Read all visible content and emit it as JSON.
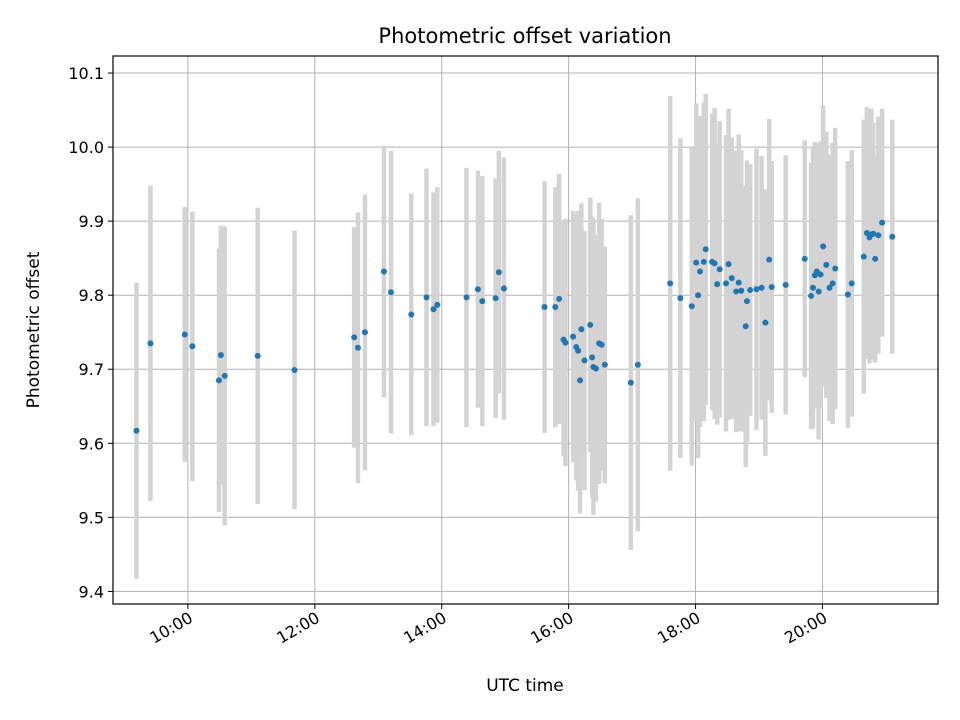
{
  "chart_data": {
    "type": "scatter",
    "title": "Photometric offset variation",
    "xlabel": "UTC time",
    "ylabel": "Photometric offset",
    "xlim": [
      8.82,
      21.82
    ],
    "ylim": [
      9.383,
      10.123
    ],
    "xticks": [
      {
        "value": 10,
        "label": "10:00"
      },
      {
        "value": 12,
        "label": "12:00"
      },
      {
        "value": 14,
        "label": "14:00"
      },
      {
        "value": 16,
        "label": "16:00"
      },
      {
        "value": 18,
        "label": "18:00"
      },
      {
        "value": 20,
        "label": "20:00"
      }
    ],
    "yticks": [
      {
        "value": 9.4,
        "label": "9.4"
      },
      {
        "value": 9.5,
        "label": "9.5"
      },
      {
        "value": 9.6,
        "label": "9.6"
      },
      {
        "value": 9.7,
        "label": "9.7"
      },
      {
        "value": 9.8,
        "label": "9.8"
      },
      {
        "value": 9.9,
        "label": "9.9"
      },
      {
        "value": 10.0,
        "label": "10.0"
      },
      {
        "value": 10.1,
        "label": "10.1"
      }
    ],
    "grid": true,
    "marker_color": "#1f77b4",
    "errorbar_color": "#d3d3d3",
    "points": [
      [
        9.19,
        9.617,
        0.2
      ],
      [
        9.41,
        9.735,
        0.213
      ],
      [
        9.95,
        9.747,
        0.172
      ],
      [
        10.07,
        9.731,
        0.182
      ],
      [
        10.49,
        9.685,
        0.178
      ],
      [
        10.52,
        9.719,
        0.175
      ],
      [
        10.58,
        9.691,
        0.202
      ],
      [
        11.1,
        9.718,
        0.2
      ],
      [
        11.68,
        9.699,
        0.188
      ],
      [
        12.62,
        9.743,
        0.149
      ],
      [
        12.68,
        9.729,
        0.183
      ],
      [
        12.79,
        9.75,
        0.186
      ],
      [
        13.09,
        9.832,
        0.17
      ],
      [
        13.2,
        9.804,
        0.191
      ],
      [
        13.52,
        9.774,
        0.163
      ],
      [
        13.76,
        9.797,
        0.174
      ],
      [
        13.87,
        9.781,
        0.158
      ],
      [
        13.93,
        9.787,
        0.159
      ],
      [
        14.39,
        9.797,
        0.175
      ],
      [
        14.57,
        9.808,
        0.16
      ],
      [
        14.64,
        9.792,
        0.169
      ],
      [
        14.85,
        9.796,
        0.162
      ],
      [
        14.9,
        9.831,
        0.164
      ],
      [
        14.98,
        9.809,
        0.177
      ],
      [
        15.62,
        9.784,
        0.17
      ],
      [
        15.79,
        9.784,
        0.162
      ],
      [
        15.85,
        9.795,
        0.169
      ],
      [
        15.92,
        9.74,
        0.158
      ],
      [
        15.95,
        9.736,
        0.167
      ],
      [
        16.07,
        9.744,
        0.17
      ],
      [
        16.12,
        9.73,
        0.18
      ],
      [
        16.15,
        9.725,
        0.189
      ],
      [
        16.18,
        9.685,
        0.18
      ],
      [
        16.2,
        9.754,
        0.17
      ],
      [
        16.25,
        9.712,
        0.175
      ],
      [
        16.34,
        9.76,
        0.172
      ],
      [
        16.37,
        9.716,
        0.19
      ],
      [
        16.39,
        9.703,
        0.2
      ],
      [
        16.43,
        9.701,
        0.18
      ],
      [
        16.48,
        9.735,
        0.19
      ],
      [
        16.52,
        9.733,
        0.17
      ],
      [
        16.57,
        9.706,
        0.16
      ],
      [
        16.98,
        9.682,
        0.226
      ],
      [
        17.09,
        9.706,
        0.225
      ],
      [
        17.6,
        9.816,
        0.253
      ],
      [
        17.76,
        9.796,
        0.216
      ],
      [
        17.94,
        9.785,
        0.215
      ],
      [
        18.01,
        9.844,
        0.215
      ],
      [
        18.04,
        9.8,
        0.22
      ],
      [
        18.07,
        9.832,
        0.21
      ],
      [
        18.13,
        9.845,
        0.215
      ],
      [
        18.16,
        9.862,
        0.21
      ],
      [
        18.26,
        9.845,
        0.2
      ],
      [
        18.3,
        9.843,
        0.21
      ],
      [
        18.34,
        9.815,
        0.19
      ],
      [
        18.38,
        9.835,
        0.2
      ],
      [
        18.48,
        9.816,
        0.2
      ],
      [
        18.52,
        9.842,
        0.21
      ],
      [
        18.57,
        9.823,
        0.19
      ],
      [
        18.64,
        9.805,
        0.19
      ],
      [
        18.68,
        9.817,
        0.2
      ],
      [
        18.72,
        9.806,
        0.19
      ],
      [
        18.79,
        9.758,
        0.19
      ],
      [
        18.81,
        9.792,
        0.19
      ],
      [
        18.86,
        9.807,
        0.17
      ],
      [
        18.96,
        9.808,
        0.19
      ],
      [
        19.04,
        9.81,
        0.178
      ],
      [
        19.1,
        9.763,
        0.18
      ],
      [
        19.16,
        9.848,
        0.19
      ],
      [
        19.2,
        9.811,
        0.17
      ],
      [
        19.42,
        9.814,
        0.175
      ],
      [
        19.72,
        9.849,
        0.16
      ],
      [
        19.82,
        9.799,
        0.18
      ],
      [
        19.85,
        9.81,
        0.19
      ],
      [
        19.88,
        9.827,
        0.18
      ],
      [
        19.91,
        9.832,
        0.17
      ],
      [
        19.94,
        9.805,
        0.2
      ],
      [
        19.97,
        9.828,
        0.18
      ],
      [
        20.01,
        9.866,
        0.19
      ],
      [
        20.06,
        9.841,
        0.18
      ],
      [
        20.11,
        9.81,
        0.18
      ],
      [
        20.16,
        9.816,
        0.19
      ],
      [
        20.2,
        9.836,
        0.19
      ],
      [
        20.4,
        9.801,
        0.18
      ],
      [
        20.46,
        9.816,
        0.18
      ],
      [
        20.65,
        9.852,
        0.185
      ],
      [
        20.7,
        9.884,
        0.17
      ],
      [
        20.74,
        9.878,
        0.17
      ],
      [
        20.77,
        9.882,
        0.17
      ],
      [
        20.8,
        9.883,
        0.15
      ],
      [
        20.83,
        9.849,
        0.14
      ],
      [
        20.88,
        9.881,
        0.16
      ],
      [
        20.94,
        9.898,
        0.154
      ],
      [
        21.1,
        9.879,
        0.158
      ]
    ]
  }
}
